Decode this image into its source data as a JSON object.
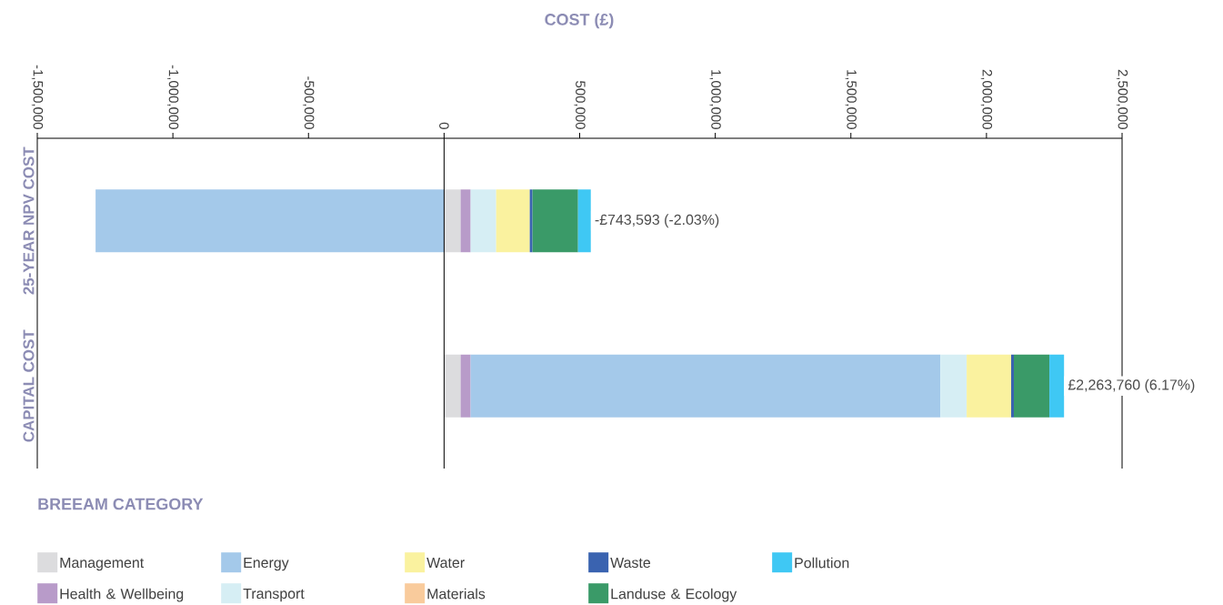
{
  "chart_data": {
    "type": "bar",
    "orientation": "horizontal",
    "stacked": true,
    "title": "COST (£)",
    "legend_title": "BREEAM CATEGORY",
    "legend": "bottom",
    "categories": [
      "25-YEAR NPV COST",
      "CAPITAL COST"
    ],
    "series": [
      {
        "name": "Management",
        "color": "#dcdcde",
        "values": [
          61000,
          61000
        ]
      },
      {
        "name": "Health & Wellbeing",
        "color": "#b89bc9",
        "values": [
          37000,
          37000
        ]
      },
      {
        "name": "Energy",
        "color": "#a4c9ea",
        "values": [
          -1285000,
          1732000
        ]
      },
      {
        "name": "Transport",
        "color": "#d6eef4",
        "values": [
          94000,
          97000
        ]
      },
      {
        "name": "Water",
        "color": "#faf29f",
        "values": [
          124000,
          164000
        ]
      },
      {
        "name": "Materials",
        "color": "#f9cb9c",
        "values": [
          0,
          0
        ]
      },
      {
        "name": "Waste",
        "color": "#3a63b0",
        "values": [
          10000,
          10000
        ]
      },
      {
        "name": "Landuse & Ecology",
        "color": "#3a9a68",
        "values": [
          168000,
          131000
        ]
      },
      {
        "name": "Pollution",
        "color": "#3fc8f4",
        "values": [
          47000,
          54000
        ]
      }
    ],
    "totals": [
      "-£743,593 (-2.03%)",
      "£2,263,760 (6.17%)"
    ],
    "xlim": [
      -1500000,
      2500000
    ],
    "xticks": [
      {
        "value": -1500000,
        "label": "-1,500,000"
      },
      {
        "value": -1000000,
        "label": "-1,000,000"
      },
      {
        "value": -500000,
        "label": "-500,000"
      },
      {
        "value": 0,
        "label": "0"
      },
      {
        "value": 500000,
        "label": "500,000"
      },
      {
        "value": 1000000,
        "label": "1,000,000"
      },
      {
        "value": 1500000,
        "label": "1,500,000"
      },
      {
        "value": 2000000,
        "label": "2,000,000"
      },
      {
        "value": 2500000,
        "label": "2,500,000"
      }
    ],
    "ref_lines": [
      {
        "axis": "x",
        "value": 0
      }
    ]
  }
}
